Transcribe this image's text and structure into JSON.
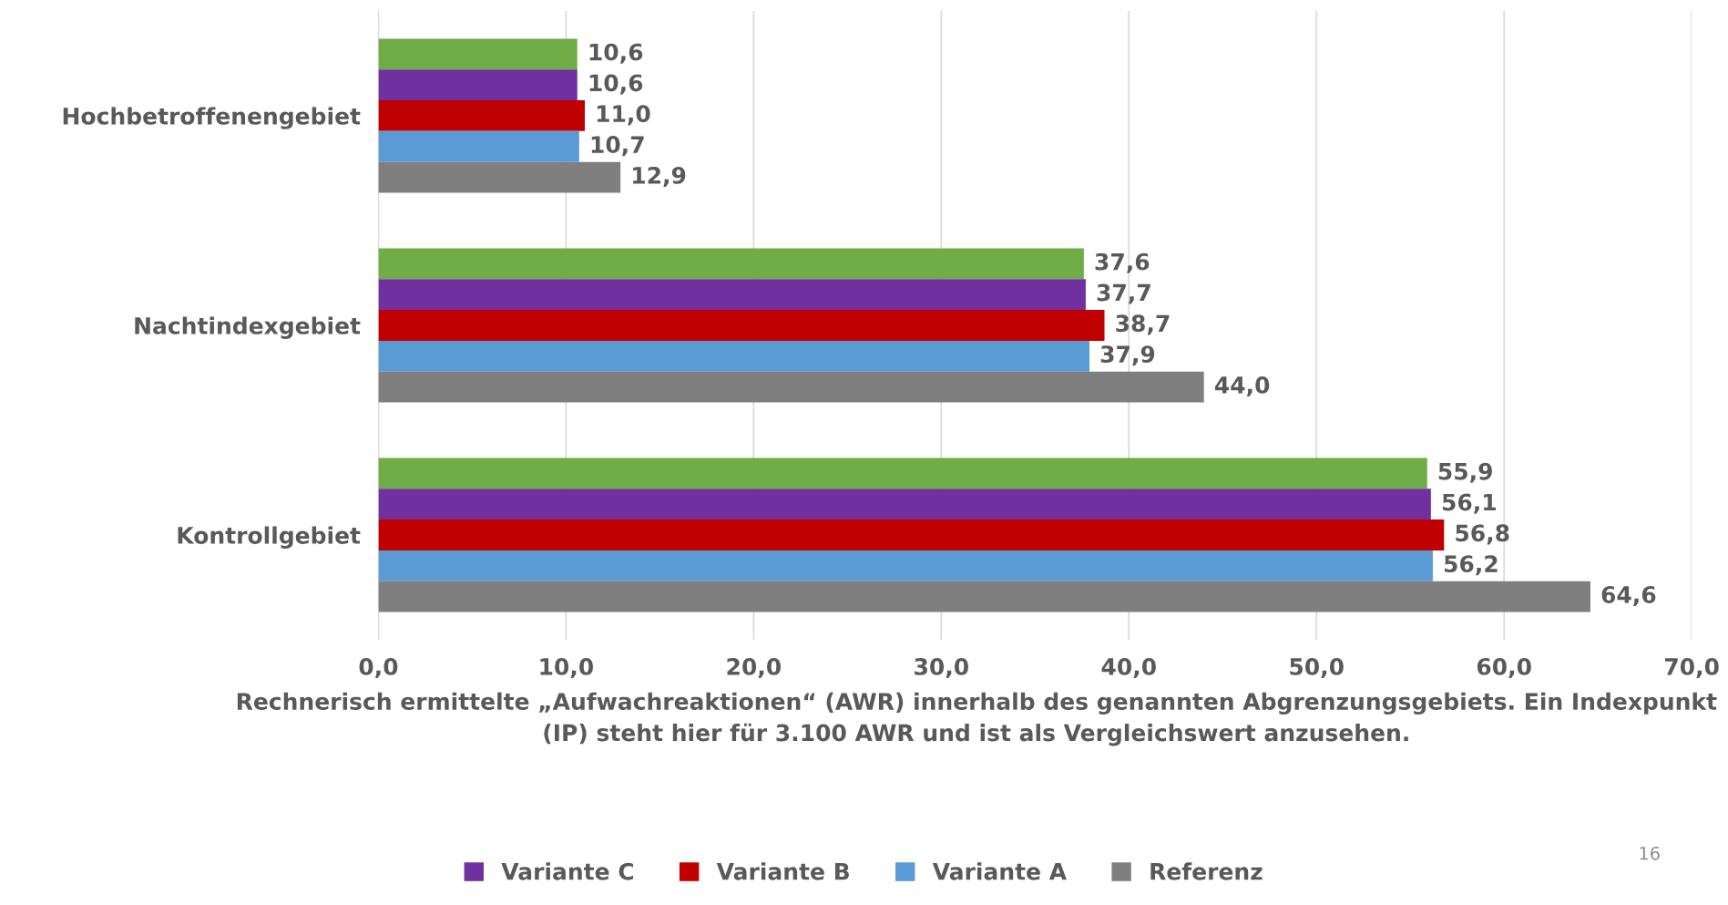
{
  "chart_data": {
    "type": "bar",
    "orientation": "horizontal",
    "categories": [
      "Hochbetroffenengebiet",
      "Nachtindexgebiet",
      "Kontrollgebiet"
    ],
    "xlabel": "Rechnerisch ermittelte „Aufwachreaktionen“ (AWR) innerhalb des genannten Abgrenzungsgebiets. Ein Indexpunkt (IP) steht hier für 3.100 AWR und ist als Vergleichswert anzusehen.",
    "xlim": [
      0,
      70
    ],
    "xticks": [
      {
        "value": 0,
        "label": "0,0"
      },
      {
        "value": 10,
        "label": "10,0"
      },
      {
        "value": 20,
        "label": "20,0"
      },
      {
        "value": 30,
        "label": "30,0"
      },
      {
        "value": 40,
        "label": "40,0"
      },
      {
        "value": 50,
        "label": "50,0"
      },
      {
        "value": 60,
        "label": "60,0"
      },
      {
        "value": 70,
        "label": "70,0"
      }
    ],
    "grid": "x",
    "legend": "bottom",
    "series": [
      {
        "color": "#70ad47",
        "values": [
          10.6,
          37.6,
          55.9
        ],
        "value_labels": [
          "10,6",
          "37,6",
          "55,9"
        ]
      },
      {
        "name": "Variante C",
        "color": "#7030a0",
        "values": [
          10.6,
          37.7,
          56.1
        ],
        "value_labels": [
          "10,6",
          "37,7",
          "56,1"
        ]
      },
      {
        "name": "Variante B",
        "color": "#c00000",
        "values": [
          11.0,
          38.7,
          56.8
        ],
        "value_labels": [
          "11,0",
          "38,7",
          "56,8"
        ]
      },
      {
        "name": "Variante A",
        "color": "#5b9bd5",
        "values": [
          10.7,
          37.9,
          56.2
        ],
        "value_labels": [
          "10,7",
          "37,9",
          "56,2"
        ]
      },
      {
        "name": "Referenz",
        "color": "#7f7f7f",
        "values": [
          12.9,
          44.0,
          64.6
        ],
        "value_labels": [
          "12,9",
          "44,0",
          "64,6"
        ]
      }
    ],
    "annotations": [
      "16"
    ]
  }
}
